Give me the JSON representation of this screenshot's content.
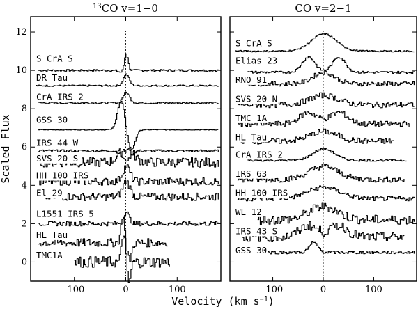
{
  "chart_data": {
    "type": "line",
    "xlabel": "Velocity (km s",
    "xlabel_sup": "−1",
    "xlabel_close": ")",
    "ylabel": "Scaled Flux",
    "xlim": [
      -185,
      185
    ],
    "ylim": [
      -1.0,
      12.8
    ],
    "x_ticks": [
      -100,
      0,
      100
    ],
    "y_ticks": [
      0,
      2,
      4,
      6,
      8,
      10,
      12
    ],
    "panels": [
      {
        "id": "13co",
        "title_sup": "13",
        "title_main": "CO v=1−0",
        "series": [
          {
            "name": "S CrA S",
            "offset": 10.0,
            "x": [
              -170,
              0,
              180
            ],
            "label_y": 10.6,
            "shape": "abs_em",
            "amp": 0.9,
            "width": 5,
            "noise": 0.05
          },
          {
            "name": "DR Tau",
            "offset": 9.2,
            "x": [
              -175,
              0,
              180
            ],
            "label_y": 9.6,
            "shape": "em",
            "amp": 0.6,
            "width": 8,
            "noise": 0.04
          },
          {
            "name": "CrA IRS 2",
            "offset": 8.3,
            "x": [
              -170,
              0,
              180
            ],
            "label_y": 8.6,
            "shape": "em",
            "amp": 0.55,
            "width": 9,
            "noise": 0.05
          },
          {
            "name": "GSS 30",
            "offset": 6.9,
            "x": [
              -170,
              0,
              180
            ],
            "label_y": 7.4,
            "shape": "em_abs",
            "amp": 1.5,
            "width": 10,
            "noise": 0.02
          },
          {
            "name": "IRS 44 W",
            "offset": 5.8,
            "x": [
              -170,
              0,
              180
            ],
            "label_y": 6.2,
            "shape": "abs",
            "amp": 0.5,
            "width": 12,
            "noise": 0.06
          },
          {
            "name": "SVS 20 S",
            "offset": 5.2,
            "x": [
              -170,
              0,
              180
            ],
            "label_y": 5.4,
            "shape": "em",
            "amp": 0.7,
            "width": 20,
            "noise": 0.25
          },
          {
            "name": "HH 100 IRS",
            "offset": 4.2,
            "x": [
              -170,
              0,
              180
            ],
            "label_y": 4.5,
            "shape": "em",
            "amp": 0.8,
            "width": 10,
            "noise": 0.2
          },
          {
            "name": "El 29",
            "offset": 3.4,
            "x": [
              -170,
              0,
              180
            ],
            "label_y": 3.6,
            "shape": "em",
            "amp": 0.8,
            "width": 10,
            "noise": 0.2
          },
          {
            "name": "L1551 IRS 5",
            "offset": 2.0,
            "x": [
              -170,
              0,
              180
            ],
            "label_y": 2.5,
            "shape": "em",
            "amp": 0.6,
            "width": 8,
            "noise": 0.12
          },
          {
            "name": "HL Tau",
            "offset": 1.0,
            "x": [
              -170,
              0,
              80
            ],
            "label_y": 1.4,
            "shape": "em_abs",
            "amp": 1.3,
            "width": 6,
            "noise": 0.22
          },
          {
            "name": "TMC1A",
            "offset": 0.0,
            "x": [
              -100,
              0,
              85
            ],
            "label_y": 0.35,
            "shape": "em_abs",
            "amp": 1.6,
            "width": 5,
            "noise": 0.3
          }
        ]
      },
      {
        "id": "co21",
        "title_main": "CO v=2−1",
        "series": [
          {
            "name": "S CrA S",
            "offset": 11.0,
            "x": [
              -175,
              0,
              180
            ],
            "label_y": 11.4,
            "shape": "em",
            "amp": 0.9,
            "width": 35,
            "noise": 0.04
          },
          {
            "name": "Elias 23",
            "offset": 9.9,
            "x": [
              -150,
              0,
              180
            ],
            "label_y": 10.5,
            "shape": "double",
            "amp": 0.8,
            "width": 18,
            "noise": 0.06
          },
          {
            "name": "RNO 91",
            "offset": 9.3,
            "x": [
              -150,
              0,
              180
            ],
            "label_y": 9.5,
            "shape": "em",
            "amp": 0.6,
            "width": 30,
            "noise": 0.12
          },
          {
            "name": "SVS 20 N",
            "offset": 8.2,
            "x": [
              -170,
              0,
              180
            ],
            "label_y": 8.5,
            "shape": "em",
            "amp": 0.5,
            "width": 40,
            "noise": 0.15
          },
          {
            "name": "TMC 1A",
            "offset": 7.2,
            "x": [
              -170,
              0,
              170
            ],
            "label_y": 7.5,
            "shape": "double",
            "amp": 0.6,
            "width": 25,
            "noise": 0.15
          },
          {
            "name": "HL Tau",
            "offset": 6.3,
            "x": [
              -165,
              0,
              140
            ],
            "label_y": 6.5,
            "shape": "em",
            "amp": 0.5,
            "width": 40,
            "noise": 0.15
          },
          {
            "name": "CrA IRS 2",
            "offset": 5.3,
            "x": [
              -150,
              0,
              165
            ],
            "label_y": 5.6,
            "shape": "em",
            "amp": 0.6,
            "width": 30,
            "noise": 0.05
          },
          {
            "name": "IRS 63",
            "offset": 4.3,
            "x": [
              -170,
              0,
              160
            ],
            "label_y": 4.6,
            "shape": "em",
            "amp": 0.7,
            "width": 40,
            "noise": 0.15
          },
          {
            "name": "HH 100 IRS",
            "offset": 3.3,
            "x": [
              -170,
              0,
              180
            ],
            "label_y": 3.6,
            "shape": "em",
            "amp": 0.6,
            "width": 45,
            "noise": 0.12
          },
          {
            "name": "WL 12",
            "offset": 2.2,
            "x": [
              -130,
              0,
              180
            ],
            "label_y": 2.6,
            "shape": "em",
            "amp": 0.7,
            "width": 40,
            "noise": 0.25
          },
          {
            "name": "IRS 43 S",
            "offset": 1.3,
            "x": [
              -160,
              0,
              160
            ],
            "label_y": 1.6,
            "shape": "double",
            "amp": 0.6,
            "width": 25,
            "noise": 0.25
          },
          {
            "name": "GSS 30",
            "offset": 0.5,
            "x": [
              -170,
              0,
              180
            ],
            "label_y": 0.6,
            "shape": "em",
            "amp": 0.5,
            "width": 12,
            "center": -20,
            "noise": 0.08
          }
        ]
      }
    ]
  }
}
